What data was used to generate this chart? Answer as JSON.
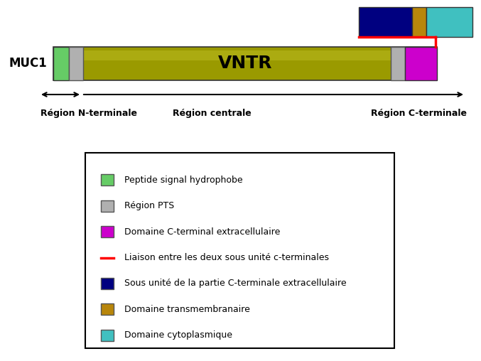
{
  "fig_width": 6.77,
  "fig_height": 5.08,
  "dpi": 100,
  "bg_color": "#ffffff",
  "muc1_label": "MUC1",
  "vntr_label": "VNTR",
  "region_labels": [
    "Région N-terminale",
    "Région centrale",
    "Région C-terminale"
  ],
  "legend_items": [
    {
      "color": "#66cc66",
      "label": "Peptide signal hydrophobe",
      "type": "rect"
    },
    {
      "color": "#b0b0b0",
      "label": "Région PTS",
      "type": "rect"
    },
    {
      "color": "#cc00cc",
      "label": "Domaine C-terminal extracellulaire",
      "type": "rect"
    },
    {
      "color": "#ff0000",
      "label": "Liaison entre les deux sous unité c-terminales",
      "type": "line"
    },
    {
      "color": "#000080",
      "label": "Sous unité de la partie C-terminale extracellulaire",
      "type": "rect"
    },
    {
      "color": "#b8860b",
      "label": "Domaine transmembranaire",
      "type": "rect"
    },
    {
      "color": "#40c0c0",
      "label": "Domaine cytoplasmique",
      "type": "rect"
    }
  ],
  "main_bar_color": "#9a9a00",
  "signal_peptide_color": "#66cc66",
  "pts_color": "#b0b0b0",
  "cterm_color": "#cc00cc",
  "navy_color": "#000080",
  "gold_color": "#b8860b",
  "teal_color": "#40c0c0",
  "link_color": "#ff0000",
  "arrow_color": "#000000"
}
